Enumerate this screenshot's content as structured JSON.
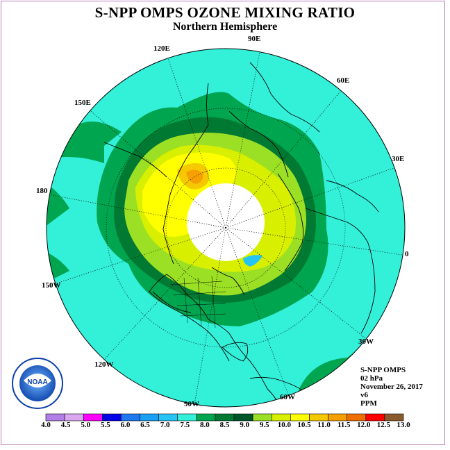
{
  "title": "S-NPP OMPS OZONE MIXING RATIO",
  "subtitle": "Northern Hemisphere",
  "longitude_labels": {
    "e90": "90E",
    "e60": "60E",
    "e30": "30E",
    "zero": "0",
    "w30": "30W",
    "w60": "60W",
    "w90": "90W",
    "w120": "120W",
    "w150": "150W",
    "d180": "180",
    "e150": "150E",
    "e120": "120E"
  },
  "info": {
    "product": "S-NPP OMPS",
    "level": "02 hPa",
    "date": "November 26, 2017",
    "version": "v6",
    "units": "PPM"
  },
  "logo": {
    "text": "NOAA"
  },
  "colorbar": {
    "ticks": [
      "4.0",
      "4.5",
      "5.0",
      "5.5",
      "6.0",
      "6.5",
      "7.0",
      "7.5",
      "8.0",
      "8.5",
      "9.0",
      "9.5",
      "10.0",
      "10.5",
      "11.0",
      "11.5",
      "12.0",
      "12.5",
      "13.0"
    ],
    "colors": [
      "#b27fe8",
      "#d9a6f2",
      "#ff00ff",
      "#0000e8",
      "#1e78f0",
      "#1aa0f5",
      "#26c3f5",
      "#33f0d9",
      "#00a550",
      "#007a33",
      "#00552a",
      "#9be024",
      "#d8f000",
      "#ffff00",
      "#f5c800",
      "#f5a000",
      "#f06e00",
      "#ff0000",
      "#8b5a2b"
    ]
  }
}
